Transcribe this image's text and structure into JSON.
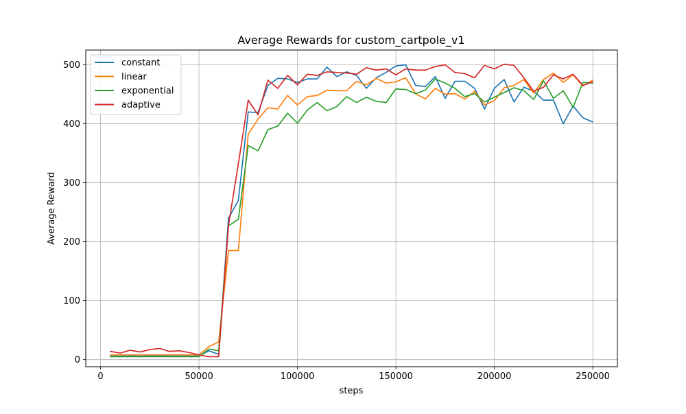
{
  "chart_data": {
    "type": "line",
    "title": "Average Rewards for custom_cartpole_v1",
    "xlabel": "steps",
    "ylabel": "Average Reward",
    "xlim": [
      -7500,
      262500
    ],
    "ylim": [
      -12,
      525
    ],
    "xticks": [
      0,
      50000,
      100000,
      150000,
      200000,
      250000
    ],
    "yticks": [
      0,
      100,
      200,
      300,
      400,
      500
    ],
    "grid": true,
    "legend_position": "top-left",
    "x": [
      5000,
      10000,
      15000,
      20000,
      25000,
      30000,
      35000,
      40000,
      45000,
      50000,
      55000,
      60000,
      65000,
      70000,
      75000,
      80000,
      85000,
      90000,
      95000,
      100000,
      105000,
      110000,
      115000,
      120000,
      125000,
      130000,
      135000,
      140000,
      145000,
      150000,
      155000,
      160000,
      165000,
      170000,
      175000,
      180000,
      185000,
      190000,
      195000,
      200000,
      205000,
      210000,
      215000,
      220000,
      225000,
      230000,
      235000,
      240000,
      245000,
      250000
    ],
    "series": [
      {
        "name": "constant",
        "color": "#1f77b4",
        "values": [
          6,
          6,
          6,
          6,
          6,
          6,
          6,
          6,
          6,
          6,
          15,
          9,
          240,
          270,
          420,
          419,
          465,
          477,
          476,
          470,
          476,
          476,
          496,
          480,
          488,
          482,
          460,
          478,
          487,
          498,
          500,
          465,
          463,
          480,
          443,
          472,
          472,
          460,
          425,
          460,
          475,
          437,
          462,
          455,
          440,
          440,
          400,
          430,
          410,
          403
        ]
      },
      {
        "name": "linear",
        "color": "#ff7f0e",
        "values": [
          8,
          8,
          8,
          8,
          8,
          8,
          8,
          8,
          8,
          8,
          22,
          30,
          185,
          185,
          382,
          408,
          427,
          425,
          448,
          432,
          446,
          448,
          457,
          456,
          456,
          472,
          466,
          477,
          469,
          471,
          478,
          451,
          442,
          460,
          450,
          451,
          442,
          455,
          432,
          439,
          461,
          465,
          475,
          452,
          475,
          486,
          470,
          483,
          464,
          474
        ]
      },
      {
        "name": "exponential",
        "color": "#2ca02c",
        "values": [
          5,
          5,
          5,
          5,
          5,
          5,
          5,
          5,
          5,
          5,
          18,
          15,
          227,
          238,
          363,
          354,
          390,
          396,
          418,
          401,
          423,
          436,
          422,
          429,
          446,
          436,
          445,
          438,
          436,
          459,
          458,
          451,
          457,
          476,
          469,
          460,
          446,
          451,
          437,
          445,
          453,
          461,
          456,
          441,
          473,
          443,
          456,
          428,
          470,
          469
        ]
      },
      {
        "name": "adaptive",
        "color": "#d62728",
        "values": [
          14,
          11,
          16,
          13,
          17,
          19,
          14,
          15,
          12,
          8,
          5,
          5,
          228,
          332,
          440,
          415,
          474,
          460,
          482,
          466,
          484,
          482,
          488,
          487,
          486,
          484,
          495,
          491,
          493,
          483,
          493,
          491,
          491,
          497,
          500,
          487,
          485,
          478,
          499,
          493,
          501,
          499,
          478,
          455,
          462,
          483,
          476,
          484,
          465,
          471
        ]
      }
    ]
  }
}
